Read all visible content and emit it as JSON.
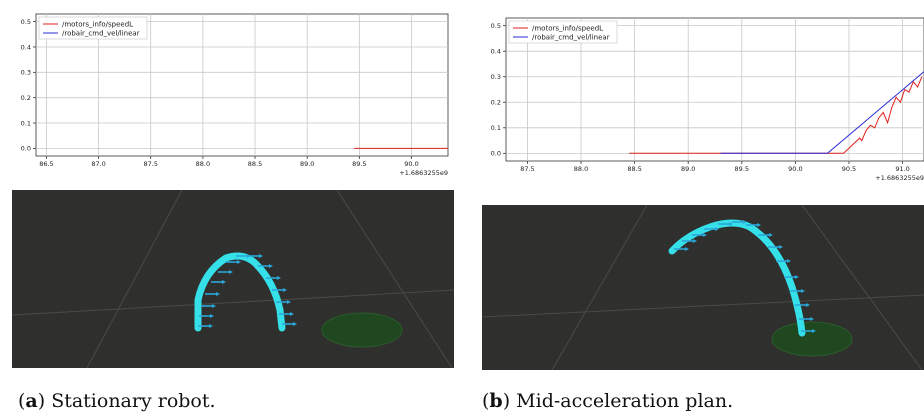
{
  "panels": [
    {
      "id": "a",
      "caption_letter": "a",
      "caption_text": "Stationary robot.",
      "chart_data": {
        "type": "line",
        "title": "",
        "xlabel": "",
        "ylabel": "",
        "x_offset_label": "+1.6863255e9",
        "xlim": [
          86.4,
          90.35
        ],
        "ylim": [
          -0.03,
          0.53
        ],
        "xticks": [
          "86.5",
          "87.0",
          "87.5",
          "88.0",
          "88.5",
          "89.0",
          "89.5",
          "90.0"
        ],
        "yticks": [
          "0.0",
          "0.1",
          "0.2",
          "0.3",
          "0.4",
          "0.5"
        ],
        "grid": true,
        "legend_position": "top-left",
        "series": [
          {
            "name": "/motors_info/speedL",
            "color": "#e0201c",
            "x": [
              89.45,
              90.35
            ],
            "y": [
              0.0,
              0.0
            ]
          },
          {
            "name": "/robair_cmd_vel/linear",
            "color": "#2a2ad8",
            "x": [],
            "y": []
          }
        ]
      }
    },
    {
      "id": "b",
      "caption_letter": "b",
      "caption_text": "Mid-acceleration plan.",
      "chart_data": {
        "type": "line",
        "title": "",
        "xlabel": "",
        "ylabel": "",
        "x_offset_label": "+1.6863255e9",
        "xlim": [
          87.3,
          91.2
        ],
        "ylim": [
          -0.03,
          0.53
        ],
        "xticks": [
          "87.5",
          "88.0",
          "88.5",
          "89.0",
          "89.5",
          "90.0",
          "90.5",
          "91.0"
        ],
        "yticks": [
          "0.0",
          "0.1",
          "0.2",
          "0.3",
          "0.4",
          "0.5"
        ],
        "grid": true,
        "legend_position": "top-left",
        "series": [
          {
            "name": "/motors_info/speedL",
            "color": "#e0201c",
            "x": [
              88.45,
              90.45,
              90.5,
              90.55,
              90.6,
              90.62,
              90.66,
              90.7,
              90.74,
              90.78,
              90.82,
              90.86,
              90.9,
              90.94,
              90.98,
              91.02,
              91.06,
              91.1,
              91.14,
              91.18
            ],
            "y": [
              0.0,
              0.0,
              0.02,
              0.04,
              0.06,
              0.05,
              0.09,
              0.11,
              0.1,
              0.14,
              0.16,
              0.12,
              0.18,
              0.22,
              0.2,
              0.25,
              0.24,
              0.28,
              0.26,
              0.3
            ]
          },
          {
            "name": "/robair_cmd_vel/linear",
            "color": "#2a2ad8",
            "x": [
              89.3,
              90.3,
              91.2
            ],
            "y": [
              0.0,
              0.0,
              0.32
            ]
          }
        ]
      }
    }
  ]
}
